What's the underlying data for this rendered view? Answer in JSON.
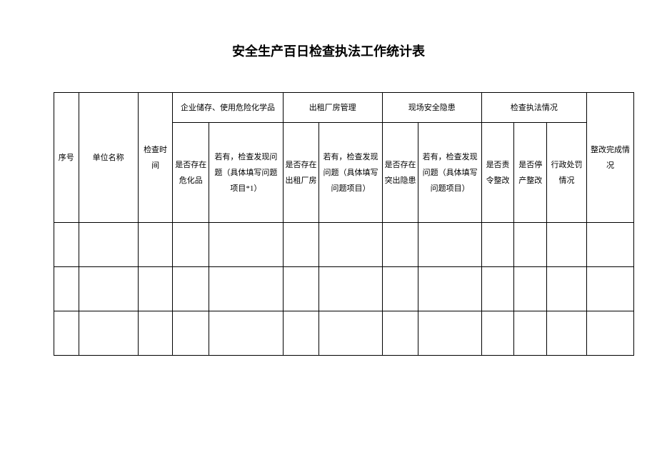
{
  "title": "安全生产百日检查执法工作统计表",
  "table": {
    "headers": {
      "seq": "序号",
      "unit_name": "单位名称",
      "check_time": "检查时间",
      "hazard_group": "企业储存、使用危险化学品",
      "hazard_exists": "是否存在危化品",
      "hazard_issues": "若有，检查发现问题（具体填写问题项目*1）",
      "rental_group": "出租厂房管理",
      "rental_exists": "是否存在出租厂房",
      "rental_issues": "若有，检查发现问题（具体填写问题项目）",
      "safety_group": "现场安全隐患",
      "safety_exists": "是否存在突出隐患",
      "safety_issues": "若有，检查发现问题（具体填写问题项目）",
      "enforcement_group": "检查执法情况",
      "enforcement_order": "是否责令整改",
      "enforcement_stop": "是否停产整改",
      "enforcement_penalty": "行政处罚情况",
      "rectification": "整改完成情况"
    },
    "row_count": 3,
    "colors": {
      "border": "#000000",
      "background": "#ffffff",
      "text": "#000000"
    },
    "fonts": {
      "title_size": 18,
      "cell_size": 11,
      "family": "SimSun"
    }
  }
}
